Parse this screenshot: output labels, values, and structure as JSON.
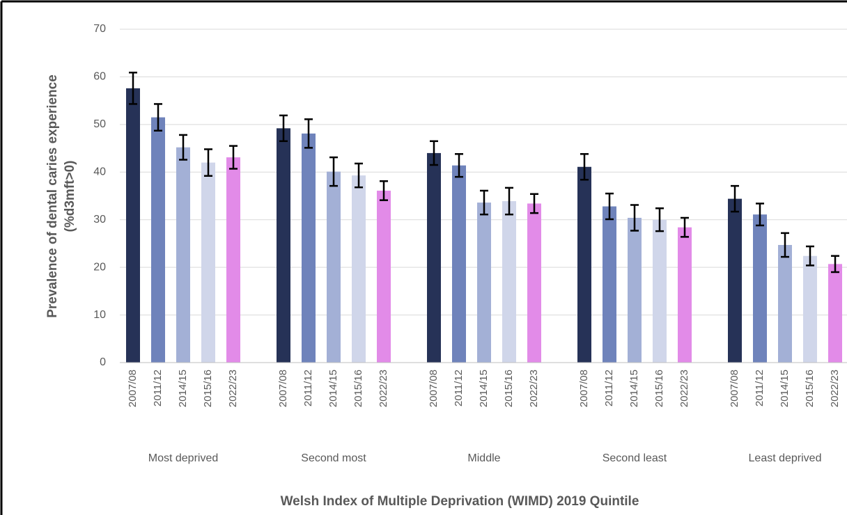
{
  "chart_data": {
    "type": "bar",
    "y_label": [
      "Prevalence of dental caries experience",
      "(%d3mft>0)"
    ],
    "x_label": "Welsh Index of Multiple Deprivation (WIMD) 2019 Quintile",
    "categories": [
      "Most deprived",
      "Second most",
      "Middle",
      "Second least",
      "Least deprived"
    ],
    "series": [
      {
        "name": "2007/08",
        "color": "#263257",
        "values": [
          57.6,
          49.2,
          44.0,
          41.1,
          34.4
        ],
        "errors": [
          3.3,
          2.7,
          2.5,
          2.7,
          2.7
        ]
      },
      {
        "name": "2011/12",
        "color": "#6f83bb",
        "values": [
          51.5,
          48.1,
          41.4,
          32.8,
          31.1
        ],
        "errors": [
          2.8,
          3.0,
          2.4,
          2.7,
          2.3
        ]
      },
      {
        "name": "2014/15",
        "color": "#a3b0d6",
        "values": [
          45.2,
          40.1,
          33.6,
          30.4,
          24.7
        ],
        "errors": [
          2.6,
          3.0,
          2.5,
          2.7,
          2.5
        ]
      },
      {
        "name": "2015/16",
        "color": "#d0d6ea",
        "values": [
          42.0,
          39.3,
          33.9,
          30.0,
          22.4
        ],
        "errors": [
          2.8,
          2.5,
          2.8,
          2.4,
          2.0
        ]
      },
      {
        "name": "2022/23",
        "color": "#e28be8",
        "values": [
          43.1,
          36.1,
          33.4,
          28.4,
          20.7
        ],
        "errors": [
          2.4,
          2.0,
          2.0,
          2.0,
          1.7
        ]
      }
    ],
    "ylim": [
      0,
      70
    ],
    "yticks": [
      0,
      10,
      20,
      30,
      40,
      50,
      60,
      70
    ],
    "grid": true
  }
}
